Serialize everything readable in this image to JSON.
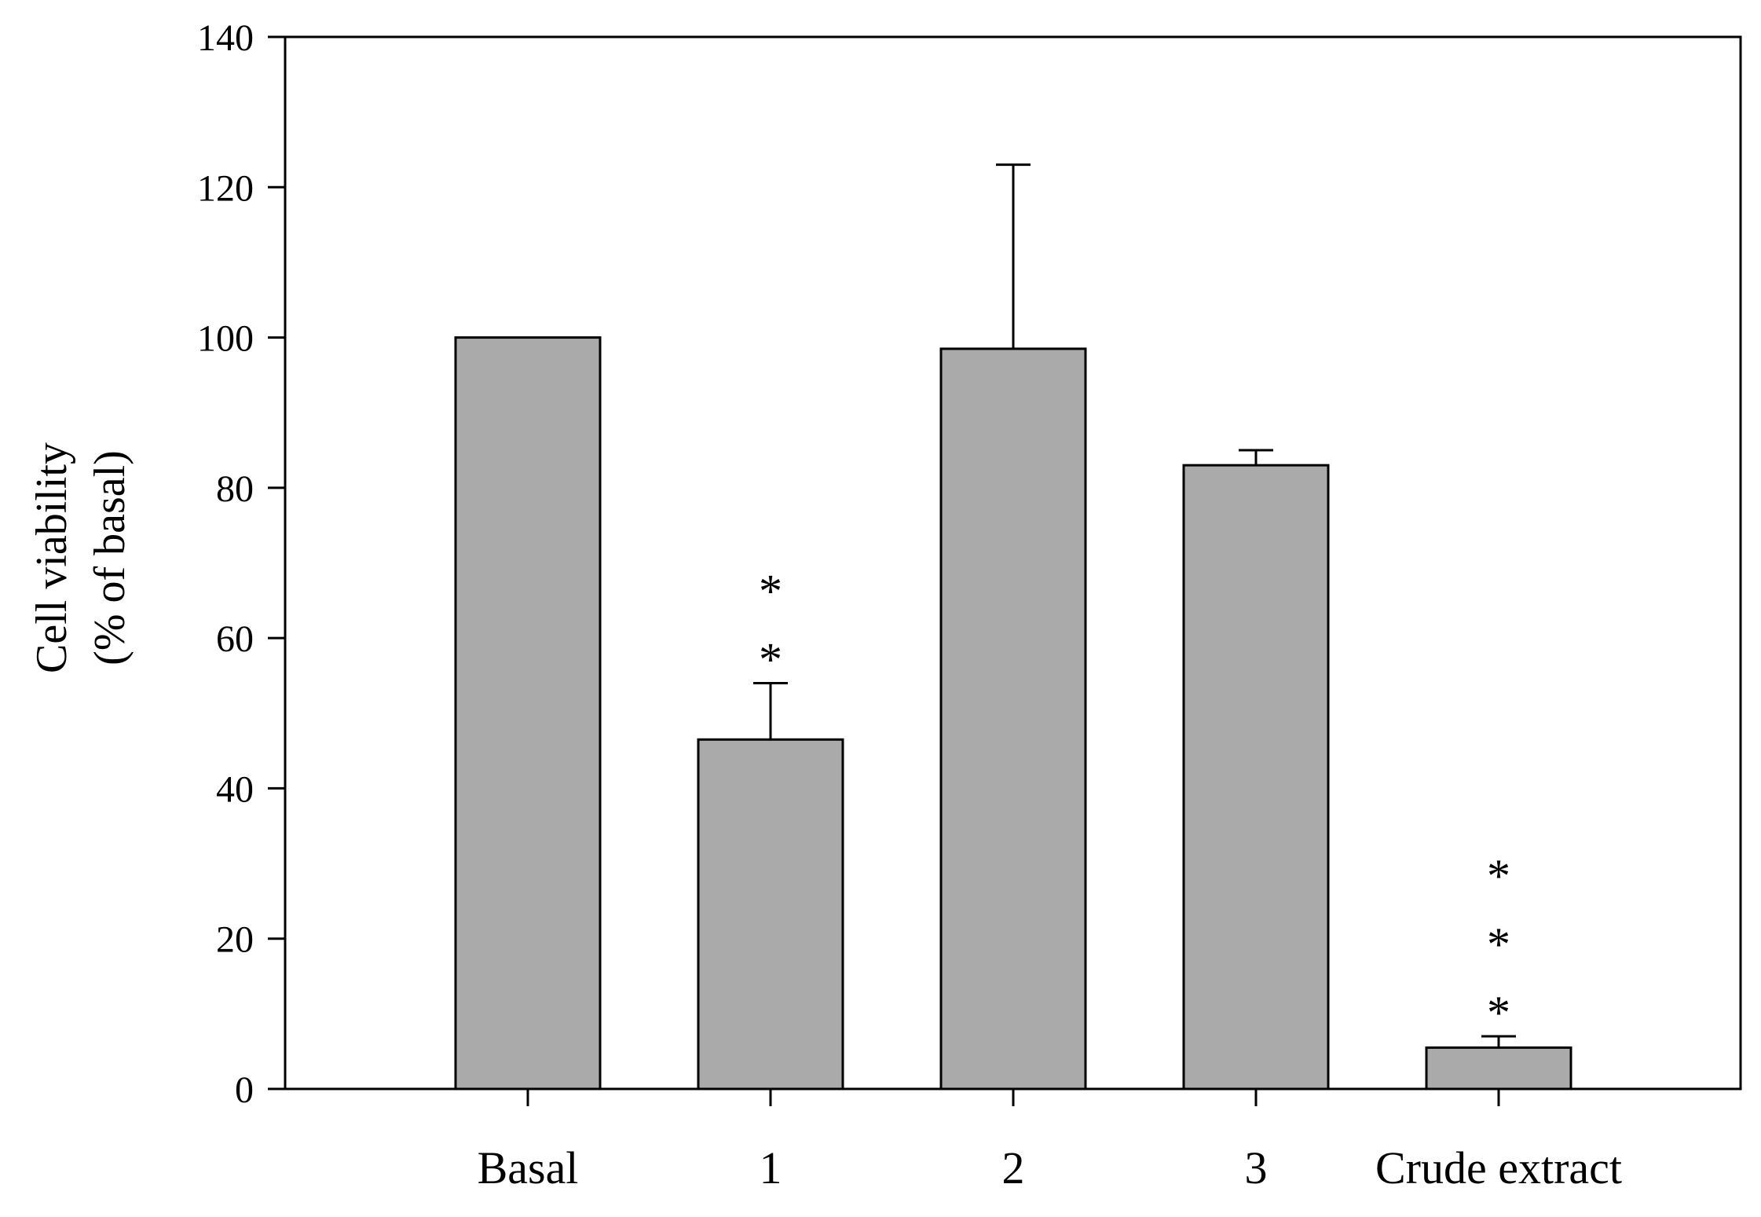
{
  "chart_data": {
    "type": "bar",
    "title": "",
    "xlabel": "",
    "ylabel_lines": [
      "Cell viability",
      "(% of basal)"
    ],
    "categories": [
      "Basal",
      "1",
      "2",
      "3",
      "Crude extract"
    ],
    "values": [
      100,
      46.5,
      98.5,
      83,
      5.5
    ],
    "error_upper": [
      0,
      7.5,
      24.5,
      2,
      1.5
    ],
    "significance": [
      "",
      "**",
      "",
      "",
      "***"
    ],
    "ylim": [
      0,
      140
    ],
    "yticks": [
      0,
      20,
      40,
      60,
      80,
      100,
      120,
      140
    ],
    "grid": false,
    "legend": "none",
    "colors": {
      "bar_fill": "#aaaaaa",
      "bar_stroke": "#000000",
      "axis": "#000000",
      "background": "#ffffff"
    }
  }
}
